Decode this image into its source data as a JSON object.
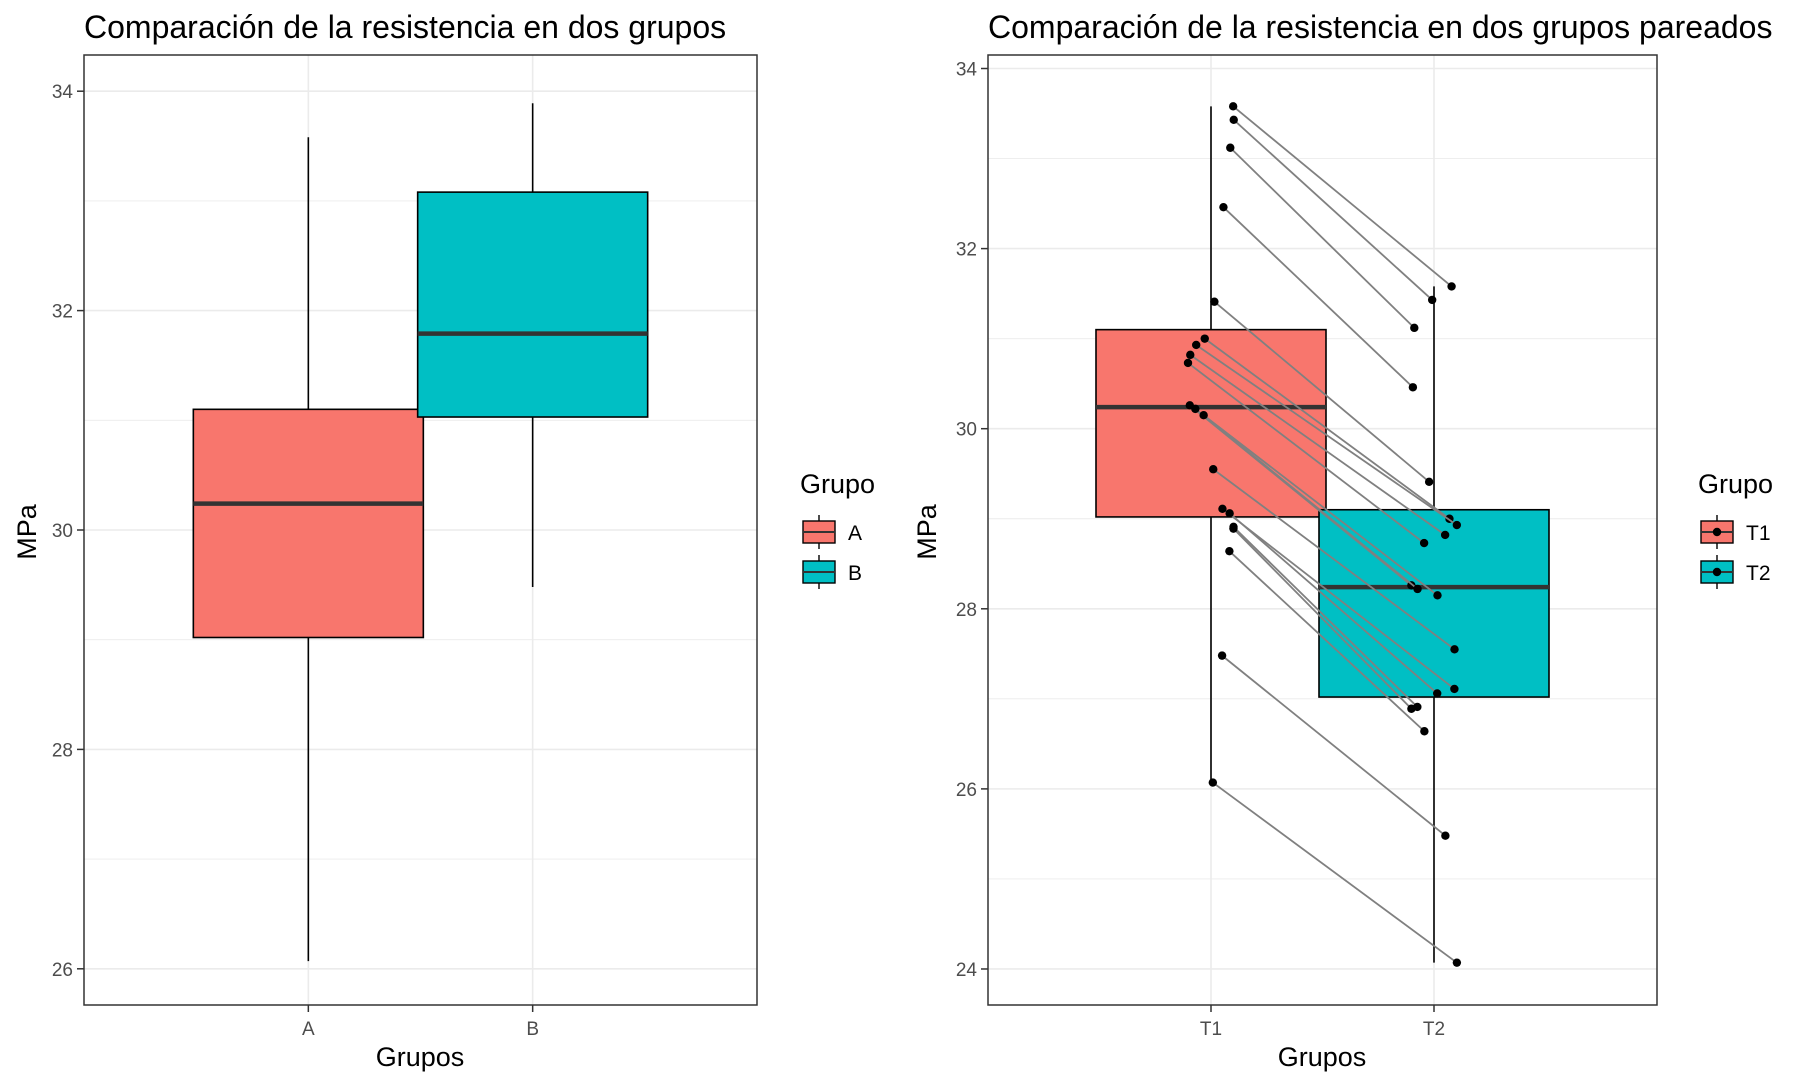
{
  "chart_data": [
    {
      "type": "boxplot",
      "title": "Comparación de la resistencia en dos grupos",
      "xlabel": "Grupos",
      "ylabel": "MPa",
      "ylim": [
        25.67,
        34.33
      ],
      "yticks": [
        26,
        28,
        30,
        32,
        34
      ],
      "grid": true,
      "legend": {
        "title": "Grupo",
        "position": "right"
      },
      "categories": [
        "A",
        "B"
      ],
      "boxes": [
        {
          "name": "A",
          "color": "#F8766D",
          "min": 26.07,
          "q1": 29.02,
          "median": 30.24,
          "q3": 31.1,
          "max": 33.58
        },
        {
          "name": "B",
          "color": "#00BFC4",
          "min": 29.48,
          "q1": 31.03,
          "median": 31.79,
          "q3": 33.08,
          "max": 33.89
        }
      ]
    },
    {
      "type": "boxplot",
      "title": "Comparación de la resistencia en dos grupos pareados",
      "xlabel": "Grupos",
      "ylabel": "MPa",
      "ylim": [
        23.6,
        34.15
      ],
      "yticks": [
        24,
        26,
        28,
        30,
        32,
        34
      ],
      "grid": true,
      "legend": {
        "title": "Grupo",
        "position": "right"
      },
      "categories": [
        "T1",
        "T2"
      ],
      "boxes": [
        {
          "name": "T1",
          "color": "#F8766D",
          "min": 26.07,
          "q1": 29.02,
          "median": 30.24,
          "q3": 31.1,
          "max": 33.58
        },
        {
          "name": "T2",
          "color": "#00BFC4",
          "min": 24.07,
          "q1": 27.02,
          "median": 28.24,
          "q3": 29.1,
          "max": 31.58
        }
      ],
      "pairs": [
        {
          "t1": 33.58,
          "t2": 31.58
        },
        {
          "t1": 33.43,
          "t2": 31.43
        },
        {
          "t1": 33.12,
          "t2": 31.12
        },
        {
          "t1": 32.46,
          "t2": 30.46
        },
        {
          "t1": 31.41,
          "t2": 29.41
        },
        {
          "t1": 31.0,
          "t2": 29.0
        },
        {
          "t1": 30.93,
          "t2": 28.93
        },
        {
          "t1": 30.82,
          "t2": 28.82
        },
        {
          "t1": 30.73,
          "t2": 28.73
        },
        {
          "t1": 30.26,
          "t2": 28.26
        },
        {
          "t1": 30.22,
          "t2": 28.22
        },
        {
          "t1": 30.15,
          "t2": 28.15
        },
        {
          "t1": 29.55,
          "t2": 27.55
        },
        {
          "t1": 29.11,
          "t2": 27.11
        },
        {
          "t1": 29.06,
          "t2": 27.06
        },
        {
          "t1": 28.91,
          "t2": 26.91
        },
        {
          "t1": 28.89,
          "t2": 26.89
        },
        {
          "t1": 28.64,
          "t2": 26.64
        },
        {
          "t1": 27.48,
          "t2": 25.48
        },
        {
          "t1": 26.07,
          "t2": 24.07
        }
      ],
      "line_color": "#808080",
      "point_color": "#000000"
    }
  ]
}
